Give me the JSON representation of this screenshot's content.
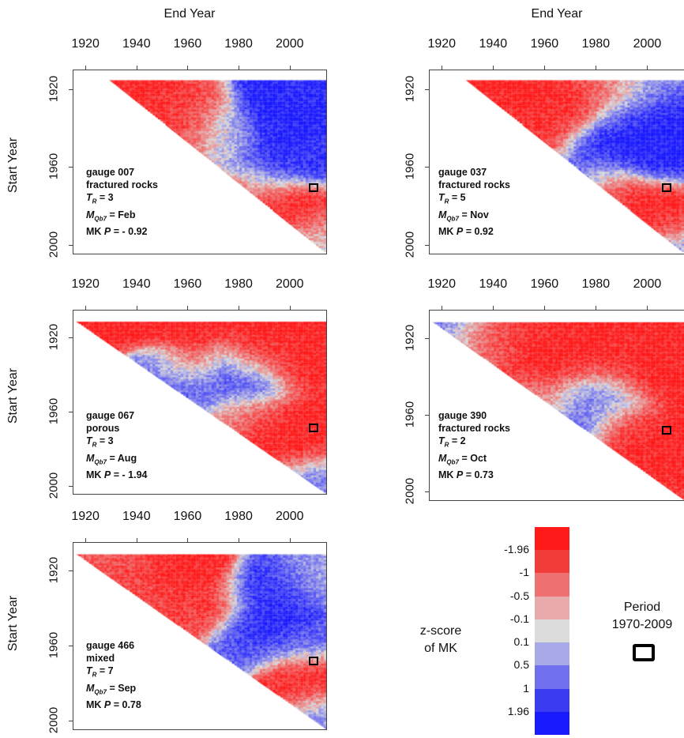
{
  "x_title": "End Year",
  "y_title": "Start Year",
  "x_ticks": [
    "1920",
    "1940",
    "1960",
    "1980",
    "2000"
  ],
  "y_ticks": [
    "1920",
    "1960",
    "2000"
  ],
  "panels": [
    {
      "gauge": "gauge 007",
      "geology": "fractured rocks",
      "tr_label": "T",
      "tr_sub": "R",
      "tr_value": "= 3",
      "m_label": "M",
      "m_sub": "Qb7",
      "m_value": "= Feb",
      "mk_label": "MK ",
      "mk_p": "P",
      "mk_value": " = - 0.92"
    },
    {
      "gauge": "gauge 037",
      "geology": "fractured rocks",
      "tr_label": "T",
      "tr_sub": "R",
      "tr_value": "= 5",
      "m_label": "M",
      "m_sub": "Qb7",
      "m_value": "= Nov",
      "mk_label": "MK ",
      "mk_p": "P",
      "mk_value": " = 0.92"
    },
    {
      "gauge": "gauge 067",
      "geology": "porous",
      "tr_label": "T",
      "tr_sub": "R",
      "tr_value": "= 3",
      "m_label": "M",
      "m_sub": "Qb7",
      "m_value": "= Aug",
      "mk_label": "MK ",
      "mk_p": "P",
      "mk_value": " = - 1.94"
    },
    {
      "gauge": "gauge 390",
      "geology": "fractured rocks",
      "tr_label": "T",
      "tr_sub": "R",
      "tr_value": "= 2",
      "m_label": "M",
      "m_sub": "Qb7",
      "m_value": "= Oct",
      "mk_label": "MK ",
      "mk_p": "P",
      "mk_value": " = 0.73"
    },
    {
      "gauge": "gauge 466",
      "geology": "mixed",
      "tr_label": "T",
      "tr_sub": "R",
      "tr_value": "= 7",
      "m_label": "M",
      "m_sub": "Qb7",
      "m_value": "= Sep",
      "mk_label": "MK ",
      "mk_p": "P",
      "mk_value": " = 0.78"
    }
  ],
  "colorbar": {
    "title_line1": "z-score",
    "title_line2": "of MK",
    "labels": [
      "-1.96",
      "-1",
      "-0.5",
      "-0.1",
      "0.1",
      "0.5",
      "1",
      "1.96"
    ],
    "colors": [
      "#ff1a1a",
      "#f23b3b",
      "#ee7070",
      "#e8aaaa",
      "#dcdcdc",
      "#a8aae8",
      "#7070ee",
      "#3b3bf2",
      "#1a1aff"
    ]
  },
  "period_legend": {
    "line1": "Period",
    "line2": "1970-2009"
  },
  "chart_data": [
    {
      "type": "heatmap",
      "title": "gauge 007",
      "xlabel": "End Year",
      "ylabel": "Start Year",
      "xlim": [
        1915,
        2014
      ],
      "ylim": [
        1910,
        2004
      ],
      "period_marker": [
        1970,
        2009
      ],
      "blobs": [
        {
          "x": 1935,
          "y": 1930,
          "z": -1.9
        },
        {
          "x": 1945,
          "y": 1932,
          "z": -1.8
        },
        {
          "x": 1955,
          "y": 1938,
          "z": -1.6
        },
        {
          "x": 1965,
          "y": 1930,
          "z": -1.5
        },
        {
          "x": 1972,
          "y": 1945,
          "z": -1.4
        },
        {
          "x": 1955,
          "y": 1950,
          "z": -1.2
        },
        {
          "x": 1975,
          "y": 1950,
          "z": 0.8
        },
        {
          "x": 1990,
          "y": 1925,
          "z": 1.9
        },
        {
          "x": 2005,
          "y": 1925,
          "z": 1.8
        },
        {
          "x": 1990,
          "y": 1950,
          "z": 1.9
        },
        {
          "x": 2005,
          "y": 1955,
          "z": 1.7
        },
        {
          "x": 1988,
          "y": 1965,
          "z": 1.2
        },
        {
          "x": 1975,
          "y": 1940,
          "z": 1.3
        },
        {
          "x": 1995,
          "y": 1935,
          "z": 2.0
        },
        {
          "x": 1990,
          "y": 1978,
          "z": -1.9
        },
        {
          "x": 2002,
          "y": 1980,
          "z": -1.9
        },
        {
          "x": 2008,
          "y": 1992,
          "z": -1.0
        },
        {
          "x": 2010,
          "y": 2000,
          "z": 0.5
        },
        {
          "x": 1980,
          "y": 1972,
          "z": -1.6
        }
      ]
    },
    {
      "type": "heatmap",
      "title": "gauge 037",
      "xlabel": "End Year",
      "ylabel": "Start Year",
      "xlim": [
        1915,
        2014
      ],
      "ylim": [
        1910,
        2004
      ],
      "period_marker": [
        1970,
        2009
      ],
      "blobs": [
        {
          "x": 1940,
          "y": 1925,
          "z": -1.9
        },
        {
          "x": 1955,
          "y": 1925,
          "z": -1.9
        },
        {
          "x": 1965,
          "y": 1930,
          "z": -1.8
        },
        {
          "x": 1975,
          "y": 1925,
          "z": -1.6
        },
        {
          "x": 1985,
          "y": 1922,
          "z": -1.0
        },
        {
          "x": 1950,
          "y": 1940,
          "z": -1.7
        },
        {
          "x": 1960,
          "y": 1945,
          "z": -1.5
        },
        {
          "x": 1990,
          "y": 1935,
          "z": 1.9
        },
        {
          "x": 2005,
          "y": 1935,
          "z": 2.0
        },
        {
          "x": 1995,
          "y": 1950,
          "z": 2.0
        },
        {
          "x": 1980,
          "y": 1950,
          "z": 1.8
        },
        {
          "x": 2005,
          "y": 1955,
          "z": 1.9
        },
        {
          "x": 1975,
          "y": 1960,
          "z": 1.2
        },
        {
          "x": 1998,
          "y": 1922,
          "z": 0.6
        },
        {
          "x": 1990,
          "y": 1975,
          "z": -1.8
        },
        {
          "x": 2003,
          "y": 1978,
          "z": -1.9
        },
        {
          "x": 2008,
          "y": 1990,
          "z": -1.7
        },
        {
          "x": 2012,
          "y": 2001,
          "z": 1.0
        },
        {
          "x": 1982,
          "y": 1968,
          "z": -0.6
        }
      ]
    },
    {
      "type": "heatmap",
      "title": "gauge 067",
      "xlabel": "End Year",
      "ylabel": "Start Year",
      "xlim": [
        1915,
        2014
      ],
      "ylim": [
        1905,
        2004
      ],
      "period_marker": [
        1970,
        2009
      ],
      "blobs": [
        {
          "x": 1935,
          "y": 1910,
          "z": -1.9
        },
        {
          "x": 1960,
          "y": 1910,
          "z": -1.9
        },
        {
          "x": 1990,
          "y": 1910,
          "z": -1.9
        },
        {
          "x": 2005,
          "y": 1915,
          "z": -1.9
        },
        {
          "x": 1960,
          "y": 1935,
          "z": -1.5
        },
        {
          "x": 2000,
          "y": 1935,
          "z": -1.8
        },
        {
          "x": 1985,
          "y": 1930,
          "z": -1.6
        },
        {
          "x": 1955,
          "y": 1945,
          "z": 1.5
        },
        {
          "x": 1975,
          "y": 1940,
          "z": 1.4
        },
        {
          "x": 1985,
          "y": 1945,
          "z": 1.6
        },
        {
          "x": 1965,
          "y": 1950,
          "z": 1.2
        },
        {
          "x": 1948,
          "y": 1940,
          "z": 0.8
        },
        {
          "x": 1985,
          "y": 1960,
          "z": -1.4
        },
        {
          "x": 2000,
          "y": 1965,
          "z": -1.9
        },
        {
          "x": 2005,
          "y": 1980,
          "z": -1.9
        },
        {
          "x": 1990,
          "y": 1975,
          "z": -1.8
        },
        {
          "x": 2008,
          "y": 1995,
          "z": 1.0
        },
        {
          "x": 2012,
          "y": 2001,
          "z": 0.6
        },
        {
          "x": 1975,
          "y": 1962,
          "z": -0.6
        }
      ]
    },
    {
      "type": "heatmap",
      "title": "gauge 390",
      "xlabel": "End Year",
      "ylabel": "Start Year",
      "xlim": [
        1915,
        2014
      ],
      "ylim": [
        1905,
        2004
      ],
      "period_marker": [
        1970,
        2009
      ],
      "blobs": [
        {
          "x": 1925,
          "y": 1910,
          "z": 1.0
        },
        {
          "x": 1935,
          "y": 1915,
          "z": -1.2
        },
        {
          "x": 1945,
          "y": 1910,
          "z": -1.6
        },
        {
          "x": 1960,
          "y": 1915,
          "z": -1.8
        },
        {
          "x": 1975,
          "y": 1915,
          "z": -1.9
        },
        {
          "x": 1990,
          "y": 1915,
          "z": -1.8
        },
        {
          "x": 2005,
          "y": 1915,
          "z": -1.9
        },
        {
          "x": 1965,
          "y": 1935,
          "z": -1.9
        },
        {
          "x": 1985,
          "y": 1935,
          "z": -1.8
        },
        {
          "x": 2000,
          "y": 1940,
          "z": -1.9
        },
        {
          "x": 1975,
          "y": 1950,
          "z": 0.8
        },
        {
          "x": 1985,
          "y": 1950,
          "z": 1.0
        },
        {
          "x": 1960,
          "y": 1952,
          "z": -0.8
        },
        {
          "x": 1972,
          "y": 1965,
          "z": 1.2
        },
        {
          "x": 1990,
          "y": 1965,
          "z": -1.6
        },
        {
          "x": 2005,
          "y": 1975,
          "z": -1.9
        },
        {
          "x": 2008,
          "y": 1990,
          "z": -1.9
        },
        {
          "x": 1995,
          "y": 1980,
          "z": -1.8
        },
        {
          "x": 2012,
          "y": 2000,
          "z": -1.5
        }
      ]
    },
    {
      "type": "heatmap",
      "title": "gauge 466",
      "xlabel": "End Year",
      "ylabel": "Start Year",
      "xlim": [
        1915,
        2014
      ],
      "ylim": [
        1905,
        2004
      ],
      "period_marker": [
        1970,
        2009
      ],
      "blobs": [
        {
          "x": 1925,
          "y": 1910,
          "z": -1.2
        },
        {
          "x": 1935,
          "y": 1918,
          "z": -1.4
        },
        {
          "x": 1945,
          "y": 1930,
          "z": -1.5
        },
        {
          "x": 1955,
          "y": 1915,
          "z": -1.9
        },
        {
          "x": 1965,
          "y": 1920,
          "z": -1.9
        },
        {
          "x": 1970,
          "y": 1935,
          "z": -1.7
        },
        {
          "x": 1960,
          "y": 1945,
          "z": -1.5
        },
        {
          "x": 1985,
          "y": 1930,
          "z": 1.8
        },
        {
          "x": 1990,
          "y": 1945,
          "z": 1.9
        },
        {
          "x": 1995,
          "y": 1925,
          "z": 1.6
        },
        {
          "x": 1985,
          "y": 1955,
          "z": 1.8
        },
        {
          "x": 2000,
          "y": 1960,
          "z": 1.2
        },
        {
          "x": 1980,
          "y": 1962,
          "z": 1.0
        },
        {
          "x": 2005,
          "y": 1920,
          "z": 0.4
        },
        {
          "x": 2000,
          "y": 1975,
          "z": -1.9
        },
        {
          "x": 2005,
          "y": 1980,
          "z": -1.9
        },
        {
          "x": 1995,
          "y": 1985,
          "z": -1.6
        },
        {
          "x": 2010,
          "y": 1995,
          "z": 0.3
        },
        {
          "x": 2005,
          "y": 2000,
          "z": 1.0
        }
      ]
    }
  ]
}
